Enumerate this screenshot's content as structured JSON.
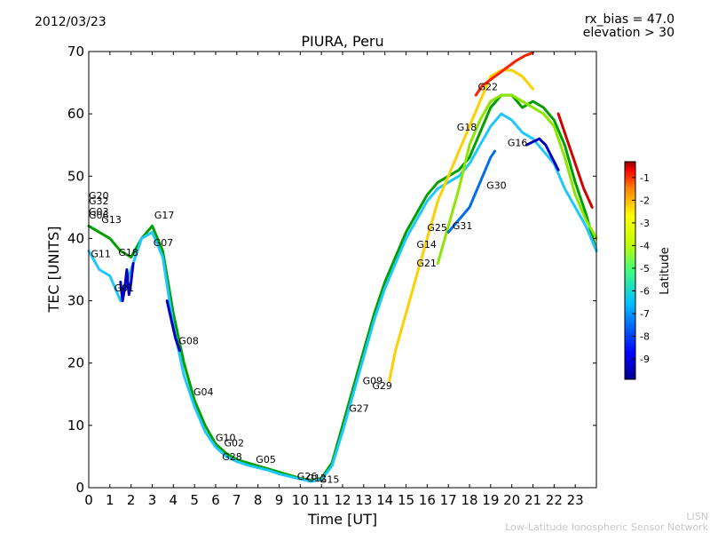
{
  "header": {
    "date": "2012/03/23",
    "rx_bias": "rx_bias = 47.0",
    "elevation": "elevation > 30"
  },
  "watermark": {
    "line1": "LISN",
    "line2": "Low-Latitude Ionospheric Sensor Network"
  },
  "colorbar": {
    "label": "Latitude",
    "ticks": [
      "-1",
      "-2",
      "-3",
      "-4",
      "-5",
      "-6",
      "-7",
      "-8",
      "-9"
    ],
    "colors": [
      "#00008f",
      "#0000ff",
      "#007fff",
      "#00ffff",
      "#7fff7f",
      "#ffff00",
      "#ff7f00",
      "#ff0000",
      "#7f0000"
    ]
  },
  "chart_data": {
    "type": "line",
    "title": "PIURA, Peru",
    "xlabel": "Time [UT]",
    "ylabel": "TEC [UNITS]",
    "xlim": [
      0,
      24
    ],
    "ylim": [
      0,
      70
    ],
    "xticks": [
      0,
      1,
      2,
      3,
      4,
      5,
      6,
      7,
      8,
      9,
      10,
      11,
      12,
      13,
      14,
      15,
      16,
      17,
      18,
      19,
      20,
      21,
      22,
      23
    ],
    "yticks": [
      0,
      10,
      20,
      30,
      40,
      50,
      60,
      70
    ],
    "grid": false,
    "series": [
      {
        "color": "#00a000",
        "x": [
          0,
          0.5,
          1,
          1.5,
          2,
          2.5,
          3,
          3.5,
          4,
          4.5,
          5,
          5.5,
          6,
          6.5,
          7,
          7.5,
          8,
          8.5,
          9,
          9.5,
          10,
          10.5,
          11,
          11.5,
          12,
          12.5,
          13,
          13.5,
          14,
          14.5,
          15,
          15.5,
          16,
          16.5,
          17,
          17.5,
          18,
          18.5,
          19,
          19.5,
          20,
          20.5,
          21,
          21.5,
          22,
          22.5,
          23,
          23.5,
          24
        ],
        "y": [
          42,
          41,
          40,
          38,
          37,
          40,
          42,
          38,
          28,
          20,
          14,
          10,
          7,
          5.5,
          4.5,
          4,
          3.5,
          3,
          2.5,
          2,
          1.5,
          1.2,
          1.5,
          4,
          10,
          16,
          22,
          28,
          33,
          37,
          41,
          44,
          47,
          49,
          50,
          51,
          53,
          57,
          61,
          63,
          63,
          61,
          62,
          61,
          59,
          55,
          49,
          44,
          38
        ]
      },
      {
        "color": "#1ec8ff",
        "x": [
          0,
          0.5,
          1,
          1.5,
          2,
          2.5,
          3,
          3.5,
          4,
          4.5,
          5,
          5.5,
          6,
          6.5,
          7,
          7.5,
          8,
          8.5,
          9,
          9.5,
          10,
          10.5,
          11,
          11.5,
          12,
          12.5,
          13,
          13.5,
          14,
          14.5,
          15,
          15.5,
          16,
          16.5,
          17,
          17.5,
          18,
          18.5,
          19,
          19.5,
          20,
          20.5,
          21,
          21.5,
          22,
          22.5,
          23,
          23.5,
          24
        ],
        "y": [
          38,
          35,
          34,
          30,
          35,
          40,
          41,
          37,
          26,
          18,
          13,
          9,
          6.5,
          5,
          4.2,
          3.6,
          3.2,
          2.8,
          2.2,
          1.8,
          1.4,
          1.0,
          1.3,
          3.5,
          9,
          15,
          21,
          27,
          32,
          36,
          40,
          43,
          46,
          48,
          49,
          50,
          52,
          55,
          58,
          60,
          59,
          57,
          56,
          54,
          52,
          48,
          45,
          42,
          38
        ]
      },
      {
        "color": "#ffd000",
        "x": [
          14.2,
          14.5,
          15,
          15.5,
          16,
          16.5,
          17,
          17.5,
          18,
          18.5,
          19,
          19.5,
          20,
          20.5,
          21
        ],
        "y": [
          17,
          22,
          28,
          34,
          40,
          46,
          50,
          54,
          58,
          62,
          66,
          67,
          67,
          66,
          64
        ]
      },
      {
        "color": "#ff2000",
        "x": [
          18.3,
          18.6,
          19,
          19.4,
          19.8,
          20.2,
          20.6,
          21
        ],
        "y": [
          63,
          64.5,
          65.5,
          66.5,
          67.5,
          68.5,
          69.3,
          69.8
        ]
      },
      {
        "color": "#0000c0",
        "x": [
          1.5,
          1.6,
          1.7,
          1.8,
          1.9,
          2.0,
          2.1
        ],
        "y": [
          33,
          30,
          32,
          35,
          31,
          33,
          36
        ]
      },
      {
        "color": "#0000c0",
        "x": [
          3.7,
          3.9,
          4.1,
          4.3
        ],
        "y": [
          30,
          27,
          24,
          22
        ]
      },
      {
        "color": "#8ce600",
        "x": [
          16.5,
          17,
          17.5,
          18,
          18.5,
          19,
          19.5,
          20,
          20.5,
          21,
          21.5,
          22,
          22.5,
          23,
          23.5,
          24
        ],
        "y": [
          36,
          42,
          48,
          55,
          59,
          62,
          63,
          63,
          62,
          61,
          60,
          58,
          53,
          47,
          43,
          40
        ]
      },
      {
        "color": "#006ee6",
        "x": [
          17.0,
          17.5,
          18,
          18.5,
          19,
          19.2
        ],
        "y": [
          41,
          43,
          45,
          49,
          53,
          54
        ]
      },
      {
        "color": "#0000c0",
        "x": [
          20.7,
          21.0,
          21.3,
          21.6,
          21.9,
          22.2
        ],
        "y": [
          55,
          55.5,
          56,
          55,
          53,
          51
        ]
      },
      {
        "color": "#d20000",
        "x": [
          22.2,
          22.6,
          23,
          23.4,
          23.8
        ],
        "y": [
          60,
          56,
          52,
          48,
          45
        ]
      }
    ]
  },
  "sat_labels": [
    {
      "text": "G20",
      "x": 0.0,
      "y": 46.3
    },
    {
      "text": "G32",
      "x": 0.0,
      "y": 45.5
    },
    {
      "text": "G03",
      "x": 0.0,
      "y": 43.8
    },
    {
      "text": "G06",
      "x": 0.0,
      "y": 43.2
    },
    {
      "text": "G13",
      "x": 0.6,
      "y": 42.5
    },
    {
      "text": "G17",
      "x": 3.1,
      "y": 43.2
    },
    {
      "text": "G07",
      "x": 3.05,
      "y": 38.8
    },
    {
      "text": "G11",
      "x": 0.1,
      "y": 37.0
    },
    {
      "text": "G18",
      "x": 1.4,
      "y": 37.2
    },
    {
      "text": "G01",
      "x": 1.2,
      "y": 31.5
    },
    {
      "text": "G08",
      "x": 4.25,
      "y": 23.0
    },
    {
      "text": "G04",
      "x": 4.95,
      "y": 14.8
    },
    {
      "text": "G10",
      "x": 6.0,
      "y": 7.5
    },
    {
      "text": "G02",
      "x": 6.4,
      "y": 6.6
    },
    {
      "text": "G28",
      "x": 6.3,
      "y": 4.4
    },
    {
      "text": "G05",
      "x": 7.9,
      "y": 4.0
    },
    {
      "text": "G26",
      "x": 9.85,
      "y": 1.3
    },
    {
      "text": "G12",
      "x": 10.3,
      "y": 1.0
    },
    {
      "text": "G15",
      "x": 10.9,
      "y": 0.8
    },
    {
      "text": "G27",
      "x": 12.3,
      "y": 12.2
    },
    {
      "text": "G09",
      "x": 12.95,
      "y": 16.6
    },
    {
      "text": "G29",
      "x": 13.4,
      "y": 15.8
    },
    {
      "text": "G14",
      "x": 15.5,
      "y": 38.5
    },
    {
      "text": "G21",
      "x": 15.5,
      "y": 35.5
    },
    {
      "text": "G25",
      "x": 16.0,
      "y": 41.2
    },
    {
      "text": "G31",
      "x": 17.2,
      "y": 41.5
    },
    {
      "text": "G18",
      "x": 17.4,
      "y": 57.3
    },
    {
      "text": "G22",
      "x": 18.4,
      "y": 63.8
    },
    {
      "text": "G16",
      "x": 19.8,
      "y": 54.8
    },
    {
      "text": "G30",
      "x": 18.8,
      "y": 48.0
    }
  ]
}
